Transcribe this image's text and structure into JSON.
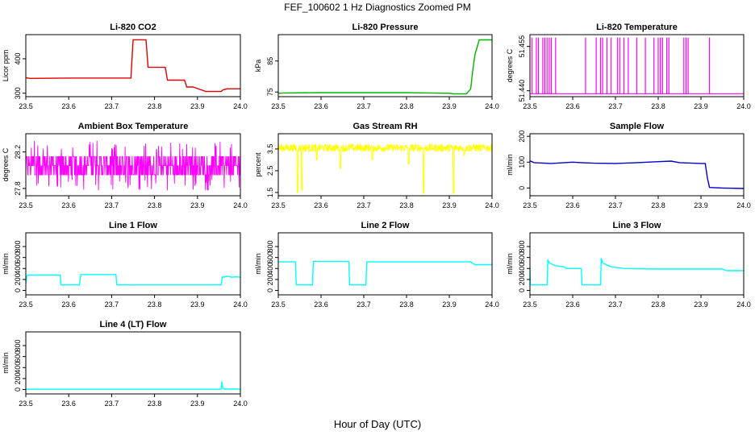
{
  "figure": {
    "title": "FEF_100602  1 Hz Diagnostics Zoomed PM",
    "xlabel": "Hour of Day (UTC)"
  },
  "chart_data": [
    {
      "type": "line",
      "title": "Li-820 CO2",
      "ylabel": "Licor ppm",
      "color": "#e00000",
      "xlim": [
        23.5,
        24.0
      ],
      "ylim": [
        290,
        470
      ],
      "xticks": [
        "23.5",
        "23.6",
        "23.7",
        "23.8",
        "23.9",
        "24.0"
      ],
      "yticks": [
        "300",
        "400"
      ],
      "series": [
        {
          "x": [
            23.5,
            23.51,
            23.6,
            23.7,
            23.745,
            23.75,
            23.76,
            23.78,
            23.785,
            23.79,
            23.82,
            23.825,
            23.83,
            23.85,
            23.86,
            23.87,
            23.875,
            23.89,
            23.92,
            23.95,
            23.955,
            23.96,
            23.97,
            24.0
          ],
          "y": [
            345,
            343,
            344,
            344,
            344,
            455,
            455,
            455,
            375,
            375,
            375,
            375,
            338,
            338,
            338,
            338,
            318,
            318,
            305,
            305,
            305,
            310,
            313,
            313
          ]
        }
      ]
    },
    {
      "type": "line",
      "title": "Li-820 Pressure",
      "ylabel": "kPa",
      "color": "#00b400",
      "xlim": [
        23.5,
        24.0
      ],
      "ylim": [
        73.5,
        93.5
      ],
      "xticks": [
        "23.5",
        "23.6",
        "23.7",
        "23.8",
        "23.9",
        "24.0"
      ],
      "yticks": [
        "75",
        "85"
      ],
      "series": [
        {
          "x": [
            23.5,
            23.51,
            23.6,
            23.7,
            23.8,
            23.9,
            23.91,
            23.915,
            23.93,
            23.94,
            23.95,
            23.955,
            23.96,
            23.97,
            24.0
          ],
          "y": [
            74.6,
            74.7,
            74.8,
            74.8,
            74.8,
            74.6,
            74.4,
            74.4,
            74.4,
            74.4,
            76.0,
            82.0,
            87.0,
            91.8,
            91.8
          ]
        }
      ]
    },
    {
      "type": "line",
      "title": "Li-820 Temperature",
      "ylabel": "degrees C",
      "color": "#ff00ff",
      "xlim": [
        23.5,
        24.0
      ],
      "ylim": [
        51.438,
        51.459
      ],
      "xticks": [
        "23.5",
        "23.6",
        "23.7",
        "23.8",
        "23.9",
        "24.0"
      ],
      "yticks": [
        "51.440",
        "51.455"
      ],
      "base": 51.439,
      "spike_top": 51.458,
      "spikes": [
        23.505,
        23.515,
        23.52,
        23.53,
        23.535,
        23.54,
        23.545,
        23.55,
        23.56,
        23.63,
        23.655,
        23.665,
        23.67,
        23.68,
        23.69,
        23.705,
        23.71,
        23.72,
        23.73,
        23.75,
        23.77,
        23.79,
        23.8,
        23.805,
        23.81,
        23.82,
        23.825,
        23.86,
        23.865,
        23.87,
        23.92
      ]
    },
    {
      "type": "line",
      "title": "Ambient Box Temperature",
      "ylabel": "degrees C",
      "color": "#ff00ff",
      "xlim": [
        23.5,
        24.0
      ],
      "ylim": [
        27.72,
        28.4
      ],
      "xticks": [
        "23.5",
        "23.6",
        "23.7",
        "23.8",
        "23.9",
        "24.0"
      ],
      "yticks": [
        "27.8",
        "28.2"
      ],
      "levels": [
        27.95,
        28.05,
        28.15
      ],
      "low": 27.78,
      "high": 28.32
    },
    {
      "type": "line",
      "title": "Gas Stream RH",
      "ylabel": "percent",
      "color": "#ffff00",
      "xlim": [
        23.5,
        24.0
      ],
      "ylim": [
        1.35,
        4.2
      ],
      "xticks": [
        "23.5",
        "23.6",
        "23.7",
        "23.8",
        "23.9",
        "24.0"
      ],
      "yticks": [
        "1.5",
        "2.5",
        "3.5"
      ],
      "mean": 3.55,
      "dips": [
        {
          "x": 23.545,
          "y": 1.5
        },
        {
          "x": 23.555,
          "y": 1.6
        },
        {
          "x": 23.59,
          "y": 3.0
        },
        {
          "x": 23.645,
          "y": 2.6
        },
        {
          "x": 23.72,
          "y": 3.0
        },
        {
          "x": 23.805,
          "y": 2.8
        },
        {
          "x": 23.84,
          "y": 1.45
        },
        {
          "x": 23.91,
          "y": 1.45
        },
        {
          "x": 23.935,
          "y": 3.2
        }
      ]
    },
    {
      "type": "line",
      "title": "Sample Flow",
      "ylabel": "ml/min",
      "color": "#0000cc",
      "xlim": [
        23.5,
        24.0
      ],
      "ylim": [
        -30,
        210
      ],
      "xticks": [
        "23.5",
        "23.6",
        "23.7",
        "23.8",
        "23.9",
        "24.0"
      ],
      "yticks": [
        "0",
        "100",
        "200"
      ],
      "series": [
        {
          "x": [
            23.5,
            23.51,
            23.55,
            23.58,
            23.6,
            23.62,
            23.65,
            23.7,
            23.75,
            23.8,
            23.83,
            23.85,
            23.9,
            23.91,
            23.915,
            23.92,
            23.95,
            24.0
          ],
          "y": [
            105,
            98,
            95,
            98,
            100,
            98,
            96,
            95,
            98,
            102,
            104,
            98,
            95,
            95,
            40,
            2,
            0,
            -2
          ]
        }
      ]
    },
    {
      "type": "line",
      "title": "Line 1 Flow",
      "ylabel": "ml/min",
      "color": "#00ffff",
      "xlim": [
        23.5,
        24.0
      ],
      "ylim": [
        -80,
        1050
      ],
      "xticks": [
        "23.5",
        "23.6",
        "23.7",
        "23.8",
        "23.9",
        "24.0"
      ],
      "yticks": [
        "0",
        "200",
        "400",
        "600",
        "800"
      ],
      "series": [
        {
          "x": [
            23.5,
            23.502,
            23.505,
            23.58,
            23.582,
            23.625,
            23.628,
            23.71,
            23.712,
            23.955,
            23.958,
            23.96,
            23.97,
            23.98,
            23.99,
            24.0
          ],
          "y": [
            120,
            260,
            280,
            280,
            100,
            100,
            290,
            290,
            100,
            100,
            250,
            240,
            260,
            240,
            250,
            240
          ]
        }
      ]
    },
    {
      "type": "line",
      "title": "Line 2 Flow",
      "ylabel": "ml/min",
      "color": "#00ffff",
      "xlim": [
        23.5,
        24.0
      ],
      "ylim": [
        -80,
        1050
      ],
      "xticks": [
        "23.5",
        "23.6",
        "23.7",
        "23.8",
        "23.9",
        "24.0"
      ],
      "yticks": [
        "0",
        "200",
        "400",
        "600",
        "800"
      ],
      "series": [
        {
          "x": [
            23.5,
            23.54,
            23.542,
            23.58,
            23.582,
            23.665,
            23.667,
            23.705,
            23.707,
            23.75,
            23.8,
            23.95,
            23.96,
            23.97,
            24.0
          ],
          "y": [
            520,
            520,
            100,
            100,
            530,
            530,
            100,
            100,
            520,
            520,
            520,
            520,
            470,
            470,
            470
          ]
        }
      ]
    },
    {
      "type": "line",
      "title": "Line 3 Flow",
      "ylabel": "ml/min",
      "color": "#00ffff",
      "xlim": [
        23.5,
        24.0
      ],
      "ylim": [
        -80,
        1050
      ],
      "xticks": [
        "23.5",
        "23.6",
        "23.7",
        "23.8",
        "23.9",
        "24.0"
      ],
      "yticks": [
        "0",
        "200",
        "400",
        "600",
        "800"
      ],
      "series": [
        {
          "x": [
            23.5,
            23.501,
            23.503,
            23.54,
            23.542,
            23.545,
            23.56,
            23.58,
            23.585,
            23.62,
            23.622,
            23.665,
            23.667,
            23.67,
            23.69,
            23.72,
            23.8,
            23.9,
            23.95,
            23.96,
            24.0
          ],
          "y": [
            420,
            110,
            100,
            100,
            560,
            500,
            450,
            430,
            400,
            400,
            100,
            100,
            580,
            500,
            430,
            400,
            390,
            390,
            390,
            360,
            360
          ]
        }
      ]
    },
    {
      "type": "line",
      "title": "Line 4 (LT) Flow",
      "ylabel": "ml/min",
      "color": "#00ffff",
      "xlim": [
        23.5,
        24.0
      ],
      "ylim": [
        -80,
        1050
      ],
      "xticks": [
        "23.5",
        "23.6",
        "23.7",
        "23.8",
        "23.9",
        "24.0"
      ],
      "yticks": [
        "0",
        "200",
        "400",
        "600",
        "800"
      ],
      "series": [
        {
          "x": [
            23.5,
            23.7,
            23.9,
            23.955,
            23.957,
            23.959,
            23.962,
            24.0
          ],
          "y": [
            5,
            5,
            5,
            5,
            140,
            20,
            8,
            8
          ]
        }
      ]
    }
  ]
}
